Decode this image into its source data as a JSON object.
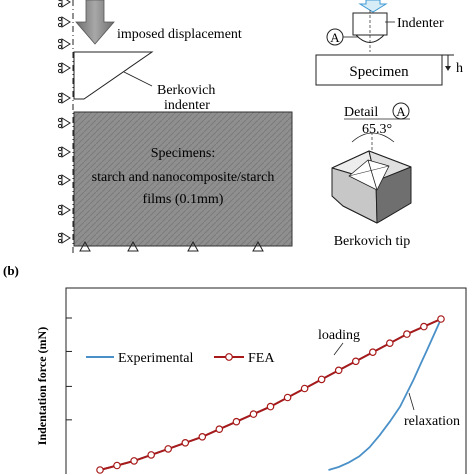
{
  "panel_a": {
    "imposed_displacement": "imposed displacement",
    "berkovich_line1": "Berkovich",
    "berkovich_line2": "indenter",
    "specimens_title": "Specimens:",
    "specimens_line1": "starch and nanocomposite/starch",
    "specimens_line2": "films (0.1mm)",
    "indenter_label": "Indenter",
    "circle_label": "A",
    "specimen_box_label": "Specimen",
    "h_label": "h",
    "detail_label": "Detail",
    "detail_circle": "A",
    "angle_label": "65.3°",
    "tip_caption": "Berkovich tip"
  },
  "panel_b": {
    "panel_label": "(b)",
    "legend_experimental": "Experimental",
    "legend_fea": "FEA",
    "loading_label": "loading",
    "relaxation_label": "relaxation"
  },
  "chart_data": {
    "type": "line",
    "title": "",
    "xlabel": "",
    "ylabel": "Indentation force (mN)",
    "x": [
      0.0,
      0.05,
      0.1,
      0.15,
      0.2,
      0.25,
      0.3,
      0.35,
      0.4,
      0.45,
      0.5,
      0.55,
      0.6,
      0.65,
      0.7,
      0.75,
      0.8,
      0.85,
      0.9,
      0.95,
      1.0
    ],
    "series": [
      {
        "name": "Experimental",
        "color": "#4a90c8",
        "x": [
          0.0,
          0.05,
          0.1,
          0.15,
          0.2,
          0.25,
          0.3,
          0.35,
          0.4,
          0.45,
          0.5,
          0.55,
          0.6,
          0.65,
          0.7,
          0.75,
          0.8,
          0.85,
          0.9,
          0.95,
          1.0,
          0.98,
          0.96,
          0.94,
          0.92,
          0.9,
          0.88,
          0.85,
          0.82,
          0.79,
          0.76,
          0.73,
          0.7,
          0.67
        ],
        "values": [
          0.0,
          0.03,
          0.06,
          0.1,
          0.14,
          0.18,
          0.22,
          0.27,
          0.32,
          0.37,
          0.42,
          0.48,
          0.54,
          0.6,
          0.66,
          0.72,
          0.78,
          0.84,
          0.9,
          0.95,
          1.0,
          0.9,
          0.8,
          0.7,
          0.6,
          0.51,
          0.42,
          0.32,
          0.23,
          0.15,
          0.09,
          0.05,
          0.02,
          0.0
        ]
      },
      {
        "name": "FEA",
        "color": "#a81a1a",
        "marker": "circle",
        "x": [
          0.0,
          0.05,
          0.1,
          0.15,
          0.2,
          0.25,
          0.3,
          0.35,
          0.4,
          0.45,
          0.5,
          0.55,
          0.6,
          0.65,
          0.7,
          0.75,
          0.8,
          0.85,
          0.9,
          0.95,
          1.0
        ],
        "values": [
          0.0,
          0.03,
          0.06,
          0.1,
          0.14,
          0.18,
          0.22,
          0.27,
          0.32,
          0.37,
          0.42,
          0.48,
          0.54,
          0.6,
          0.66,
          0.72,
          0.78,
          0.84,
          0.9,
          0.95,
          1.0
        ]
      }
    ]
  }
}
